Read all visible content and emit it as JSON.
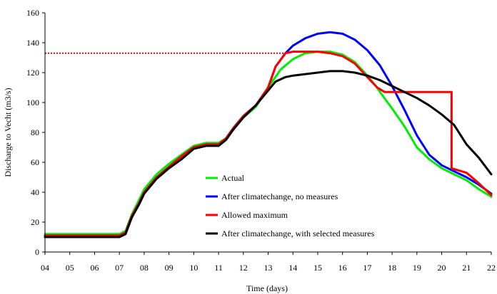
{
  "chart_data": {
    "type": "line",
    "xlabel": "Time (days)",
    "ylabel": "Discharge to Vecht (m3/s)",
    "x_ticks": [
      "04",
      "05",
      "06",
      "07",
      "08",
      "09",
      "10",
      "11",
      "12",
      "13",
      "14",
      "15",
      "16",
      "17",
      "18",
      "19",
      "20",
      "21",
      "22"
    ],
    "xlim": [
      4,
      22
    ],
    "ylim": [
      0,
      160
    ],
    "y_ticks": [
      0,
      20,
      40,
      60,
      80,
      100,
      120,
      140,
      160
    ],
    "grid": false,
    "legend_position": "bottom-center",
    "reference_line": {
      "value": 133,
      "xrange": [
        4,
        13.7
      ],
      "style": "dotted",
      "color": "#ff0000"
    },
    "series": [
      {
        "name": "Actual",
        "color": "#00ee00",
        "x": [
          4,
          5,
          6,
          7,
          7.25,
          7.5,
          7.8,
          8,
          8.5,
          9,
          9.5,
          10,
          10.5,
          11,
          11.3,
          11.6,
          12,
          12.5,
          13,
          13.5,
          14,
          14.5,
          15,
          15.5,
          16,
          16.5,
          17,
          17.3,
          17.6,
          18,
          18.5,
          19,
          19.5,
          20,
          20.5,
          21,
          21.5,
          22
        ],
        "y": [
          12,
          12,
          12,
          12,
          14,
          25,
          35,
          42,
          52,
          59,
          65,
          71,
          73,
          73,
          76,
          82,
          90,
          97,
          110,
          122,
          129,
          133,
          134,
          134,
          132,
          127,
          118,
          112,
          105,
          96,
          84,
          70,
          62,
          56,
          52,
          48,
          42,
          37
        ]
      },
      {
        "name": "After climatechange, no measures",
        "color": "#0000ff",
        "x": [
          4,
          5,
          6,
          7,
          7.25,
          7.5,
          7.8,
          8,
          8.5,
          9,
          9.5,
          10,
          10.5,
          11,
          11.3,
          11.6,
          12,
          12.5,
          13,
          13.3,
          13.7,
          14,
          14.5,
          15,
          15.5,
          16,
          16.5,
          17,
          17.5,
          18,
          18.5,
          19,
          19.5,
          20,
          20.5,
          21,
          21.5,
          22
        ],
        "y": [
          11,
          11,
          11,
          11,
          13,
          24,
          33,
          40,
          50,
          57,
          64,
          70,
          72,
          72,
          76,
          83,
          91,
          98,
          110,
          124,
          133,
          138,
          143,
          146,
          147,
          146,
          142,
          135,
          125,
          111,
          95,
          78,
          65,
          58,
          54,
          50,
          45,
          39
        ]
      },
      {
        "name": "Allowed maximum",
        "color": "#ff0000",
        "x": [
          4,
          5,
          6,
          7,
          7.25,
          7.5,
          7.8,
          8,
          8.5,
          9,
          9.5,
          10,
          10.5,
          11,
          11.3,
          11.6,
          12,
          12.5,
          13,
          13.3,
          13.7,
          14,
          14.5,
          15,
          15.5,
          16,
          16.5,
          17,
          17.4,
          17.7,
          18,
          19,
          20,
          20.4,
          20.4,
          21,
          21.5,
          22
        ],
        "y": [
          11,
          11,
          11,
          11,
          13,
          24,
          33,
          40,
          50,
          57,
          64,
          70,
          72,
          72,
          76,
          83,
          91,
          98,
          110,
          124,
          133,
          134,
          134,
          134,
          133,
          131,
          126,
          117,
          110,
          107,
          107,
          107,
          107,
          107,
          56,
          53,
          46,
          38
        ]
      },
      {
        "name": "After climatechange, with selected measures",
        "color": "#000000",
        "x": [
          4,
          5,
          6,
          7,
          7.25,
          7.5,
          7.8,
          8,
          8.5,
          9,
          9.5,
          10,
          10.5,
          11,
          11.3,
          11.6,
          12,
          12.5,
          13,
          13.3,
          13.7,
          14,
          14.5,
          15,
          15.5,
          16,
          16.5,
          17,
          17.5,
          18,
          18.5,
          19,
          19.5,
          20,
          20.5,
          21,
          21.5,
          22
        ],
        "y": [
          10,
          10,
          10,
          10,
          12,
          23,
          32,
          39,
          49,
          56,
          62,
          69,
          71,
          71,
          75,
          82,
          90,
          98,
          108,
          114,
          117,
          118,
          119,
          120,
          121,
          121,
          120,
          118,
          115,
          111,
          107,
          103,
          98,
          92,
          85,
          72,
          63,
          52
        ]
      }
    ]
  }
}
